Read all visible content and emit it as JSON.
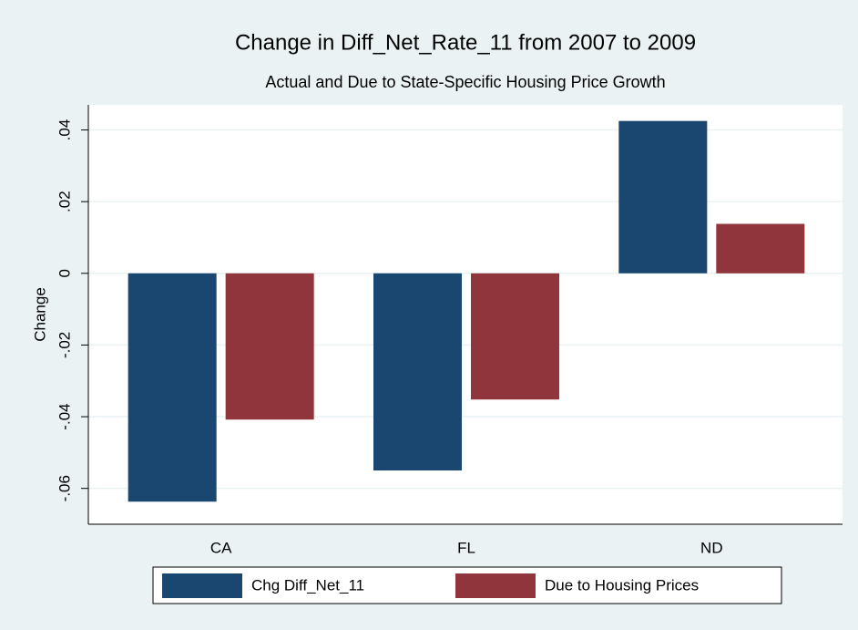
{
  "chart_data": {
    "type": "bar",
    "title": "Change in Diff_Net_Rate_11 from 2007 to 2009",
    "subtitle": "Actual and Due to State-Specific Housing Price Growth",
    "y_label": "Change",
    "categories": [
      "CA",
      "FL",
      "ND"
    ],
    "series": [
      {
        "name": "Chg Diff_Net_11",
        "color": "#1a476f",
        "values": [
          -0.0637,
          -0.055,
          0.0425
        ]
      },
      {
        "name": "Due to Housing Prices",
        "color": "#90353b",
        "values": [
          -0.0408,
          -0.0352,
          0.0138
        ]
      }
    ],
    "ylim": [
      -0.07,
      0.047
    ],
    "yticks": [
      {
        "value": -0.06,
        "label": "-.06"
      },
      {
        "value": -0.04,
        "label": "-.04"
      },
      {
        "value": -0.02,
        "label": "-.02"
      },
      0,
      {
        "value": 0.02,
        "label": ".02"
      },
      {
        "value": 0.04,
        "label": ".04"
      }
    ],
    "grid": true,
    "legend": "bottom"
  }
}
